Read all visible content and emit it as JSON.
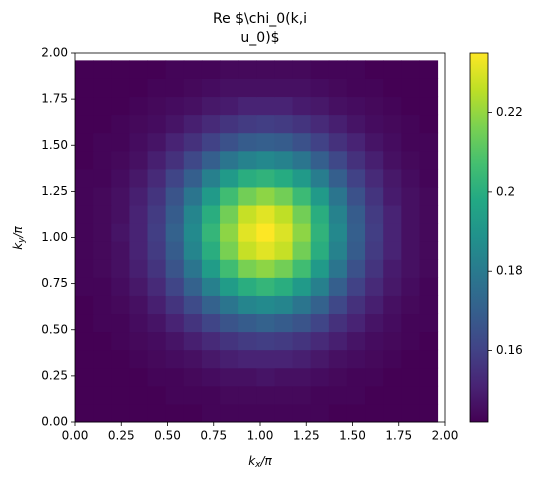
{
  "chart_data": {
    "type": "heatmap",
    "title": [
      "Re $\\chi_0(k,i",
      "u_0)$"
    ],
    "xlabel": {
      "base": "k",
      "sub": "x",
      "rest": "/π"
    },
    "ylabel": {
      "base": "k",
      "sub": "y",
      "rest": "/π"
    },
    "colormap": "viridis",
    "x": [
      0,
      0.098,
      0.196,
      0.294,
      0.392,
      0.49,
      0.588,
      0.686,
      0.784,
      0.882,
      0.98,
      1.078,
      1.176,
      1.274,
      1.372,
      1.47,
      1.568,
      1.666,
      1.764,
      1.862,
      1.96
    ],
    "y": [
      0,
      0.098,
      0.196,
      0.294,
      0.392,
      0.49,
      0.588,
      0.686,
      0.784,
      0.882,
      0.98,
      1.078,
      1.176,
      1.274,
      1.372,
      1.47,
      1.568,
      1.666,
      1.764,
      1.862,
      1.96
    ],
    "z": [
      [
        0.142,
        0.142,
        0.142,
        0.142,
        0.142,
        0.142,
        0.142,
        0.143,
        0.143,
        0.143,
        0.143,
        0.143,
        0.143,
        0.143,
        0.142,
        0.142,
        0.142,
        0.142,
        0.142,
        0.142
      ],
      [
        0.142,
        0.142,
        0.142,
        0.142,
        0.142,
        0.143,
        0.143,
        0.143,
        0.144,
        0.144,
        0.144,
        0.144,
        0.144,
        0.143,
        0.143,
        0.143,
        0.142,
        0.142,
        0.142,
        0.142
      ],
      [
        0.142,
        0.142,
        0.142,
        0.142,
        0.143,
        0.143,
        0.144,
        0.145,
        0.146,
        0.146,
        0.147,
        0.146,
        0.146,
        0.145,
        0.144,
        0.143,
        0.143,
        0.142,
        0.142,
        0.142
      ],
      [
        0.142,
        0.142,
        0.142,
        0.143,
        0.144,
        0.145,
        0.146,
        0.148,
        0.15,
        0.151,
        0.151,
        0.151,
        0.15,
        0.148,
        0.146,
        0.145,
        0.144,
        0.143,
        0.142,
        0.142
      ],
      [
        0.142,
        0.142,
        0.143,
        0.144,
        0.145,
        0.147,
        0.15,
        0.153,
        0.156,
        0.158,
        0.159,
        0.158,
        0.156,
        0.153,
        0.15,
        0.147,
        0.145,
        0.144,
        0.143,
        0.142
      ],
      [
        0.142,
        0.143,
        0.143,
        0.145,
        0.147,
        0.151,
        0.156,
        0.161,
        0.166,
        0.169,
        0.171,
        0.169,
        0.166,
        0.161,
        0.155,
        0.151,
        0.147,
        0.145,
        0.143,
        0.143
      ],
      [
        0.142,
        0.143,
        0.144,
        0.146,
        0.15,
        0.156,
        0.163,
        0.171,
        0.178,
        0.184,
        0.186,
        0.184,
        0.178,
        0.171,
        0.162,
        0.155,
        0.15,
        0.146,
        0.144,
        0.143
      ],
      [
        0.143,
        0.143,
        0.145,
        0.148,
        0.153,
        0.161,
        0.171,
        0.182,
        0.193,
        0.2,
        0.203,
        0.2,
        0.192,
        0.182,
        0.17,
        0.16,
        0.153,
        0.148,
        0.145,
        0.143
      ],
      [
        0.143,
        0.144,
        0.146,
        0.15,
        0.156,
        0.166,
        0.178,
        0.193,
        0.206,
        0.216,
        0.219,
        0.215,
        0.206,
        0.192,
        0.178,
        0.165,
        0.156,
        0.149,
        0.146,
        0.144
      ],
      [
        0.143,
        0.144,
        0.146,
        0.151,
        0.158,
        0.169,
        0.184,
        0.2,
        0.216,
        0.227,
        0.231,
        0.227,
        0.215,
        0.2,
        0.183,
        0.169,
        0.158,
        0.151,
        0.146,
        0.144
      ],
      [
        0.143,
        0.144,
        0.147,
        0.151,
        0.159,
        0.171,
        0.186,
        0.203,
        0.219,
        0.231,
        0.235,
        0.23,
        0.219,
        0.202,
        0.185,
        0.17,
        0.159,
        0.151,
        0.146,
        0.144
      ],
      [
        0.143,
        0.144,
        0.146,
        0.151,
        0.158,
        0.169,
        0.184,
        0.2,
        0.215,
        0.227,
        0.231,
        0.226,
        0.215,
        0.2,
        0.183,
        0.169,
        0.158,
        0.151,
        0.146,
        0.144
      ],
      [
        0.143,
        0.144,
        0.146,
        0.15,
        0.156,
        0.166,
        0.178,
        0.192,
        0.206,
        0.215,
        0.219,
        0.215,
        0.205,
        0.192,
        0.178,
        0.165,
        0.156,
        0.149,
        0.146,
        0.144
      ],
      [
        0.143,
        0.143,
        0.145,
        0.148,
        0.153,
        0.161,
        0.17,
        0.182,
        0.192,
        0.2,
        0.202,
        0.199,
        0.192,
        0.181,
        0.17,
        0.16,
        0.153,
        0.148,
        0.145,
        0.143
      ],
      [
        0.142,
        0.143,
        0.144,
        0.146,
        0.15,
        0.155,
        0.162,
        0.17,
        0.178,
        0.183,
        0.185,
        0.183,
        0.178,
        0.17,
        0.162,
        0.155,
        0.15,
        0.146,
        0.144,
        0.143
      ],
      [
        0.142,
        0.143,
        0.143,
        0.145,
        0.147,
        0.151,
        0.155,
        0.16,
        0.165,
        0.169,
        0.17,
        0.169,
        0.165,
        0.16,
        0.155,
        0.151,
        0.147,
        0.145,
        0.143,
        0.143
      ],
      [
        0.142,
        0.142,
        0.143,
        0.144,
        0.145,
        0.147,
        0.15,
        0.153,
        0.156,
        0.158,
        0.159,
        0.158,
        0.156,
        0.153,
        0.15,
        0.147,
        0.145,
        0.144,
        0.143,
        0.142
      ],
      [
        0.142,
        0.142,
        0.142,
        0.143,
        0.144,
        0.145,
        0.146,
        0.148,
        0.149,
        0.151,
        0.151,
        0.151,
        0.149,
        0.148,
        0.146,
        0.145,
        0.144,
        0.143,
        0.142,
        0.142
      ],
      [
        0.142,
        0.142,
        0.142,
        0.142,
        0.143,
        0.143,
        0.144,
        0.145,
        0.146,
        0.146,
        0.146,
        0.146,
        0.146,
        0.145,
        0.144,
        0.143,
        0.143,
        0.142,
        0.142,
        0.142
      ],
      [
        0.142,
        0.142,
        0.142,
        0.142,
        0.142,
        0.143,
        0.143,
        0.143,
        0.144,
        0.144,
        0.144,
        0.144,
        0.144,
        0.143,
        0.143,
        0.143,
        0.142,
        0.142,
        0.142,
        0.142
      ]
    ],
    "xlim": [
      0,
      2
    ],
    "ylim": [
      0,
      2
    ],
    "xticks": [
      {
        "value": 0,
        "label": "0.00"
      },
      {
        "value": 0.25,
        "label": "0.25"
      },
      {
        "value": 0.5,
        "label": "0.50"
      },
      {
        "value": 0.75,
        "label": "0.75"
      },
      {
        "value": 1,
        "label": "1.00"
      },
      {
        "value": 1.25,
        "label": "1.25"
      },
      {
        "value": 1.5,
        "label": "1.50"
      },
      {
        "value": 1.75,
        "label": "1.75"
      },
      {
        "value": 2,
        "label": "2.00"
      }
    ],
    "yticks": [
      {
        "value": 0,
        "label": "0.00"
      },
      {
        "value": 0.25,
        "label": "0.25"
      },
      {
        "value": 0.5,
        "label": "0.50"
      },
      {
        "value": 0.75,
        "label": "0.75"
      },
      {
        "value": 1,
        "label": "1.00"
      },
      {
        "value": 1.25,
        "label": "1.25"
      },
      {
        "value": 1.5,
        "label": "1.50"
      },
      {
        "value": 1.75,
        "label": "1.75"
      },
      {
        "value": 2,
        "label": "2.00"
      }
    ],
    "clim": [
      0.142,
      0.235
    ],
    "cticks": [
      0.16,
      0.18,
      0.2,
      0.22
    ]
  }
}
